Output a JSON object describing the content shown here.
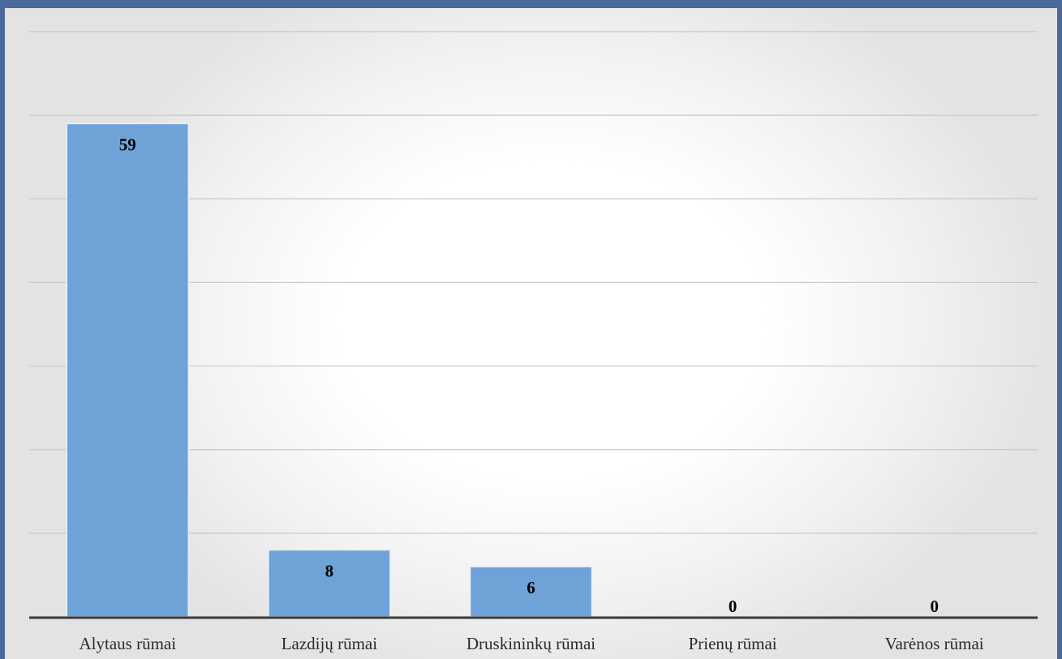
{
  "chart_data": {
    "type": "bar",
    "categories": [
      "Alytaus rūmai",
      "Lazdijų rūmai",
      "Druskininkų rūmai",
      "Prienų rūmai",
      "Varėnos rūmai"
    ],
    "values": [
      59,
      8,
      6,
      0,
      0
    ],
    "data_labels": [
      "59",
      "8",
      "6",
      "0",
      "0"
    ],
    "ylim": [
      0,
      70
    ],
    "grid": true,
    "legend": "none",
    "bar_color": "#6fa3d7",
    "bar_edge_color": "#e6f0fa",
    "grid_color": "#c8c8c8",
    "axis_color": "#3a3a3a"
  }
}
